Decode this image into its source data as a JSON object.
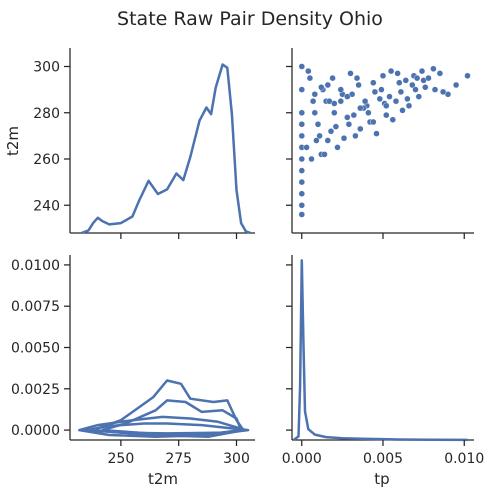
{
  "chart_data": {
    "type": "pairplot",
    "title": "State Raw Pair Density Ohio",
    "variables": [
      "t2m",
      "tp"
    ],
    "t2m_kde": {
      "x": [
        233,
        236,
        238,
        240,
        242,
        245,
        250,
        255,
        258,
        262,
        266,
        270,
        274,
        277,
        280,
        284,
        287,
        289,
        291,
        294,
        296,
        298,
        300,
        302,
        304,
        306
      ],
      "density": [
        0.0,
        0.8,
        3.0,
        4.6,
        3.6,
        2.6,
        3.0,
        5.0,
        10.0,
        15.8,
        11.8,
        13.2,
        18.0,
        16.0,
        23.0,
        34.0,
        38.0,
        36.0,
        44.0,
        51.0,
        50.0,
        36.0,
        13.0,
        3.0,
        0.5,
        0.0
      ]
    },
    "tp_kde": {
      "x": [
        -0.0005,
        -0.0002,
        -0.0001,
        0.0,
        0.0001,
        0.0002,
        0.0004,
        0.0008,
        0.0015,
        0.0025,
        0.004,
        0.006,
        0.008,
        0.0102
      ],
      "density": [
        0.0,
        2.0,
        30.0,
        100.0,
        55.0,
        16.0,
        6.0,
        3.0,
        1.6,
        1.0,
        0.6,
        0.3,
        0.15,
        0.05
      ]
    },
    "scatter": {
      "x": [
        0.0,
        0.0,
        0.0,
        0.0,
        0.0,
        0.0,
        0.0,
        0.0,
        0.0,
        0.0,
        0.0,
        0.0,
        0.0005,
        0.0007,
        0.001,
        0.0013,
        0.0016,
        0.002,
        0.0025,
        0.003,
        0.0035,
        0.004,
        0.0045,
        0.005,
        0.0055,
        0.006,
        0.0065,
        0.007,
        0.0075,
        0.0082,
        0.009,
        0.0095,
        0.0102,
        0.0012,
        0.0018,
        0.0022,
        0.0028,
        0.0033,
        0.0038,
        0.0042,
        0.0048,
        0.0052,
        0.0058,
        0.0062,
        0.0068,
        0.0072,
        0.0078,
        0.0085,
        0.0008,
        0.0011,
        0.0015,
        0.0019,
        0.0024,
        0.0029,
        0.0034,
        0.0039,
        0.0044,
        0.0049,
        0.0054,
        0.0059,
        0.0064,
        0.0069,
        0.0074,
        0.0003,
        0.0006,
        0.0009,
        0.0014,
        0.0017,
        0.0021,
        0.0026,
        0.0031,
        0.0036,
        0.0041,
        0.0046,
        0.0051,
        0.0056,
        0.0061,
        0.0066,
        0.0071,
        0.0076,
        0.0081,
        0.0087,
        0.0004,
        0.0008,
        0.0012,
        0.0016,
        0.002,
        0.0024,
        0.0028,
        0.0032,
        0.0036,
        0.0044,
        0.0052
      ],
      "y": [
        236,
        240,
        245,
        250,
        255,
        260,
        265,
        270,
        275,
        280,
        290,
        300,
        295,
        285,
        275,
        290,
        268,
        280,
        288,
        297,
        292,
        283,
        289,
        296,
        298,
        293,
        286,
        290,
        294,
        290,
        288,
        292,
        296,
        262,
        272,
        265,
        278,
        270,
        282,
        276,
        286,
        279,
        285,
        281,
        292,
        287,
        295,
        297,
        280,
        270,
        285,
        295,
        290,
        275,
        295,
        285,
        293,
        290,
        287,
        297,
        294,
        296,
        298,
        265,
        260,
        268,
        262,
        285,
        274,
        269,
        288,
        273,
        280,
        271,
        284,
        277,
        289,
        283,
        295,
        291,
        299,
        289,
        298,
        288,
        291,
        292,
        284,
        285,
        287,
        279,
        282,
        276,
        283
      ]
    },
    "contours": [
      [
        [
          235,
          0.0
        ],
        [
          245,
          0.00025
        ],
        [
          260,
          0.0004
        ],
        [
          270,
          0.0004
        ],
        [
          285,
          0.0003
        ],
        [
          295,
          0.00015
        ],
        [
          305,
          0.0
        ],
        [
          295,
          -0.00015
        ],
        [
          270,
          -0.0002
        ],
        [
          250,
          -0.00015
        ],
        [
          235,
          0.0
        ]
      ],
      [
        [
          232,
          0.0
        ],
        [
          240,
          0.0003
        ],
        [
          255,
          0.0006
        ],
        [
          268,
          0.0008
        ],
        [
          280,
          0.0007
        ],
        [
          292,
          0.0005
        ],
        [
          304,
          0.0
        ],
        [
          290,
          -0.0003
        ],
        [
          265,
          -0.0004
        ],
        [
          245,
          -0.0003
        ],
        [
          232,
          0.0
        ]
      ],
      [
        [
          242,
          0.0
        ],
        [
          252,
          0.0004
        ],
        [
          265,
          0.0012
        ],
        [
          270,
          0.0018
        ],
        [
          278,
          0.0017
        ],
        [
          285,
          0.0011
        ],
        [
          294,
          0.0012
        ],
        [
          300,
          0.0007
        ],
        [
          302,
          0.0
        ],
        [
          285,
          -0.0003
        ],
        [
          262,
          -0.0002
        ],
        [
          242,
          0.0
        ]
      ],
      [
        [
          238,
          0.0
        ],
        [
          250,
          0.0006
        ],
        [
          264,
          0.002
        ],
        [
          270,
          0.003
        ],
        [
          276,
          0.0028
        ],
        [
          280,
          0.0019
        ],
        [
          290,
          0.0017
        ],
        [
          296,
          0.0018
        ],
        [
          300,
          0.0006
        ],
        [
          303,
          0.0
        ],
        [
          288,
          -0.0004
        ],
        [
          262,
          -0.0003
        ],
        [
          238,
          0.0
        ]
      ]
    ],
    "axes": {
      "t2m": {
        "label": "t2m",
        "ticks_y": [
          "240",
          "260",
          "280",
          "300"
        ],
        "ticks_y_values": [
          240,
          260,
          280,
          300
        ],
        "ticks_x": [
          "250",
          "275",
          "300"
        ],
        "ticks_x_values": [
          250,
          275,
          300
        ],
        "range": [
          228,
          308
        ]
      },
      "tp": {
        "label": "tp",
        "ticks_y": [
          "0.0000",
          "0.0025",
          "0.0050",
          "0.0075",
          "0.0100"
        ],
        "ticks_y_values": [
          0.0,
          0.0025,
          0.005,
          0.0075,
          0.01
        ],
        "ticks_x": [
          "0.000",
          "0.005",
          "0.010"
        ],
        "ticks_x_values": [
          0.0,
          0.005,
          0.01
        ],
        "range": [
          -0.0006,
          0.0106
        ]
      }
    },
    "colors": {
      "series": "#4c72b0",
      "text": "#262626"
    }
  }
}
